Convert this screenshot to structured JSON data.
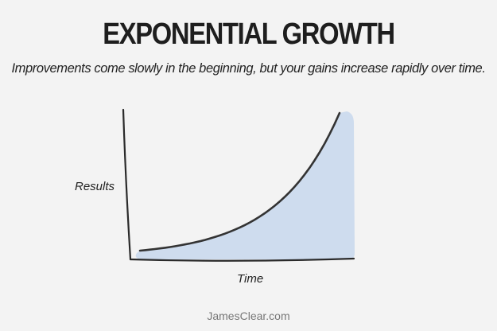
{
  "chart_data": {
    "type": "area",
    "title": "EXPONENTIAL GROWTH",
    "subtitle": "Improvements come slowly in the beginning, but your gains increase rapidly over time.",
    "xlabel": "Time",
    "ylabel": "Results",
    "curve": "exponential",
    "grid": false,
    "colors": {
      "fill": "#cedcee",
      "line": "#333333",
      "axis": "#2a2a2a"
    }
  },
  "footer": {
    "credit": "JamesClear.com"
  }
}
